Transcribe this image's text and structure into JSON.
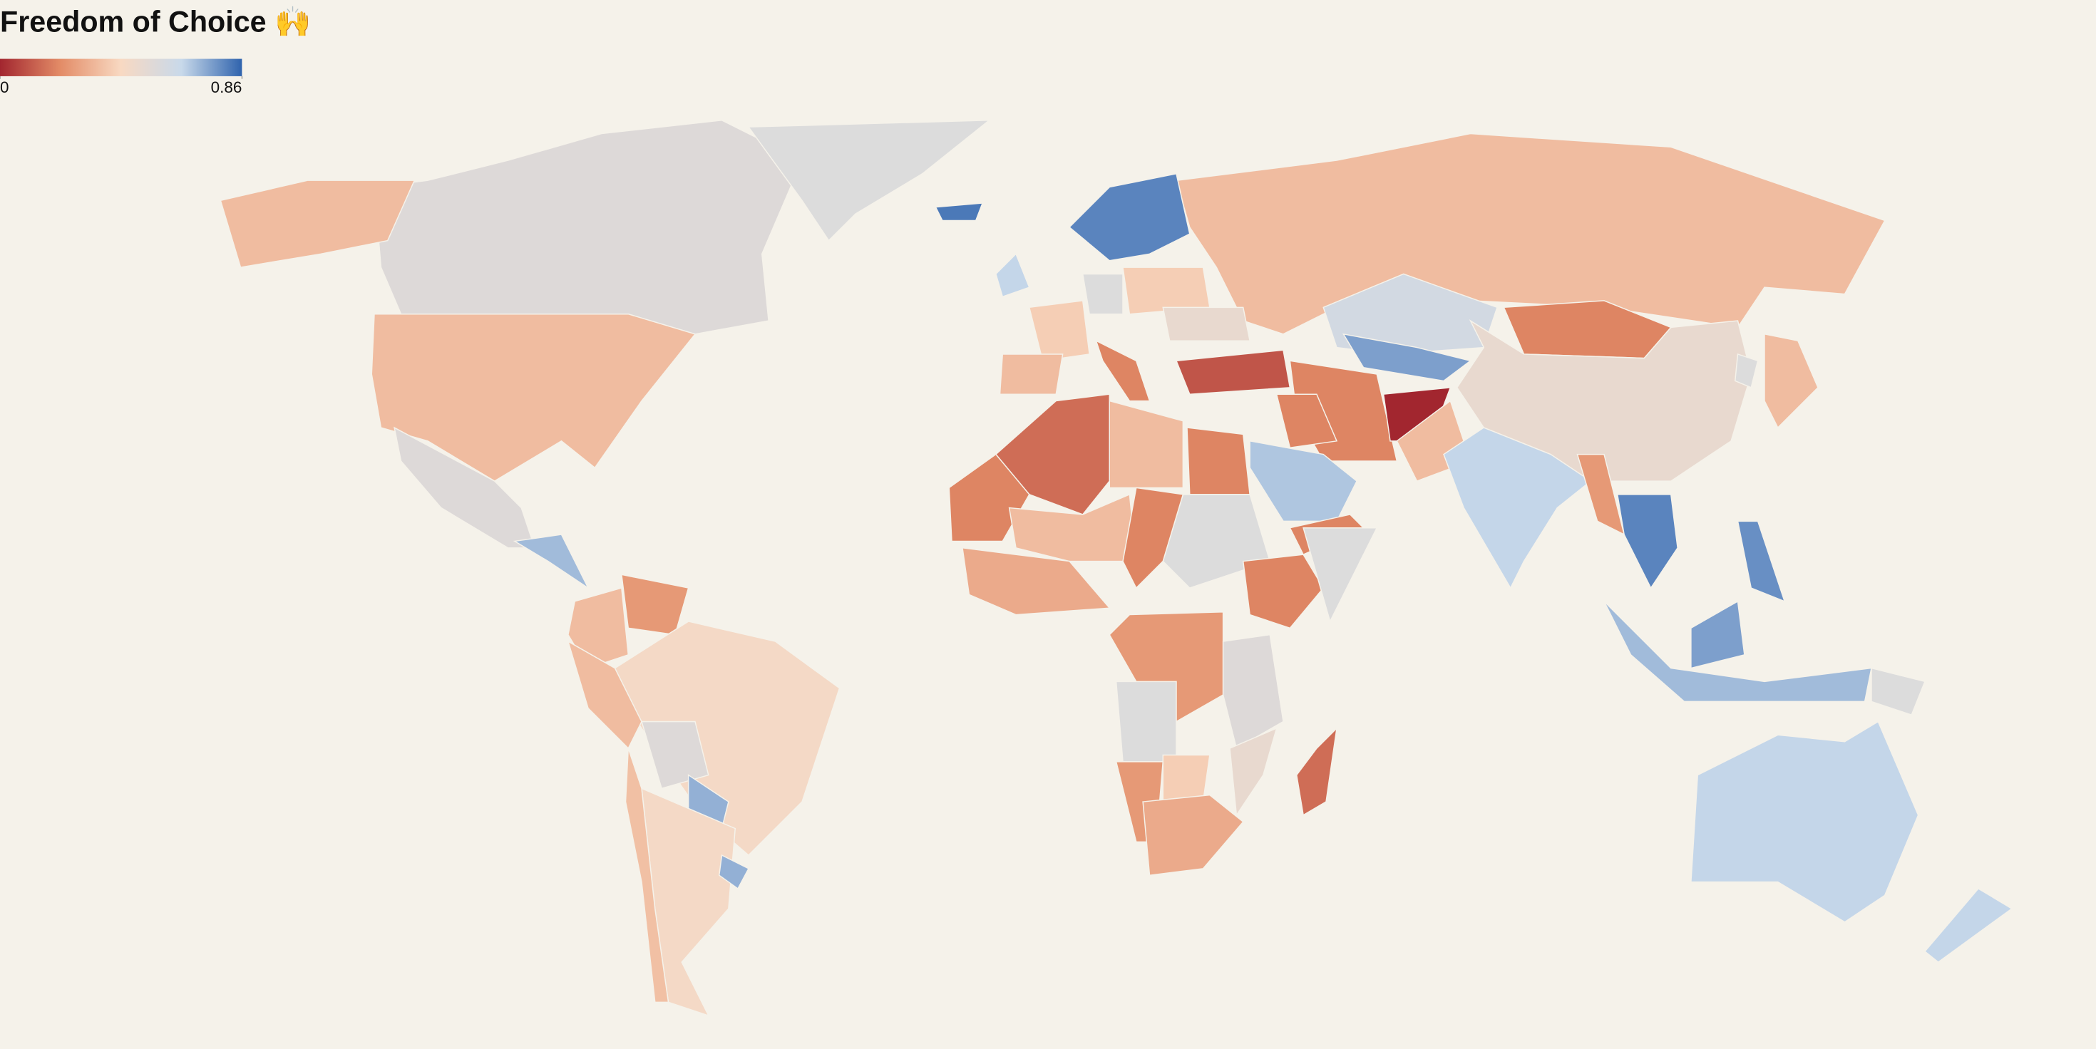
{
  "chart_data": {
    "type": "choropleth",
    "title": "Freedom of Choice 🙌",
    "colorlim": [
      0,
      0.86
    ],
    "colorticks": [
      0,
      0.86
    ],
    "colors": [
      "#a2262f",
      "#e38c67",
      "#f8d9c2",
      "#c8d9ea",
      "#2f63ad"
    ],
    "missing_color": "#dcdcdc",
    "border_color": "#f5f2ea",
    "values": [
      0.55,
      0.35,
      null,
      0.55,
      0.7,
      0.35,
      0.25,
      0.45,
      0.35,
      0.55,
      0.72,
      0.45,
      0.36,
      0.72,
      0.35,
      0.8,
      0.82,
      0.65,
      0.4,
      0.35,
      null,
      0.2,
      0.4,
      0.5,
      0.1,
      0.2,
      0.0,
      0.35,
      0.6,
      0.75,
      0.2,
      0.5,
      0.65,
      0.68,
      0.2,
      0.2,
      0.15,
      0.35,
      0.2,
      0.2,
      0.35,
      null,
      0.2,
      0.3,
      0.2,
      null,
      0.25,
      0.55,
      null,
      0.25,
      0.4,
      0.3,
      0.15,
      0.5,
      0.25,
      0.8,
      0.78,
      0.7,
      0.75,
      null,
      0.35,
      null,
      0.65,
      0.65
    ]
  }
}
